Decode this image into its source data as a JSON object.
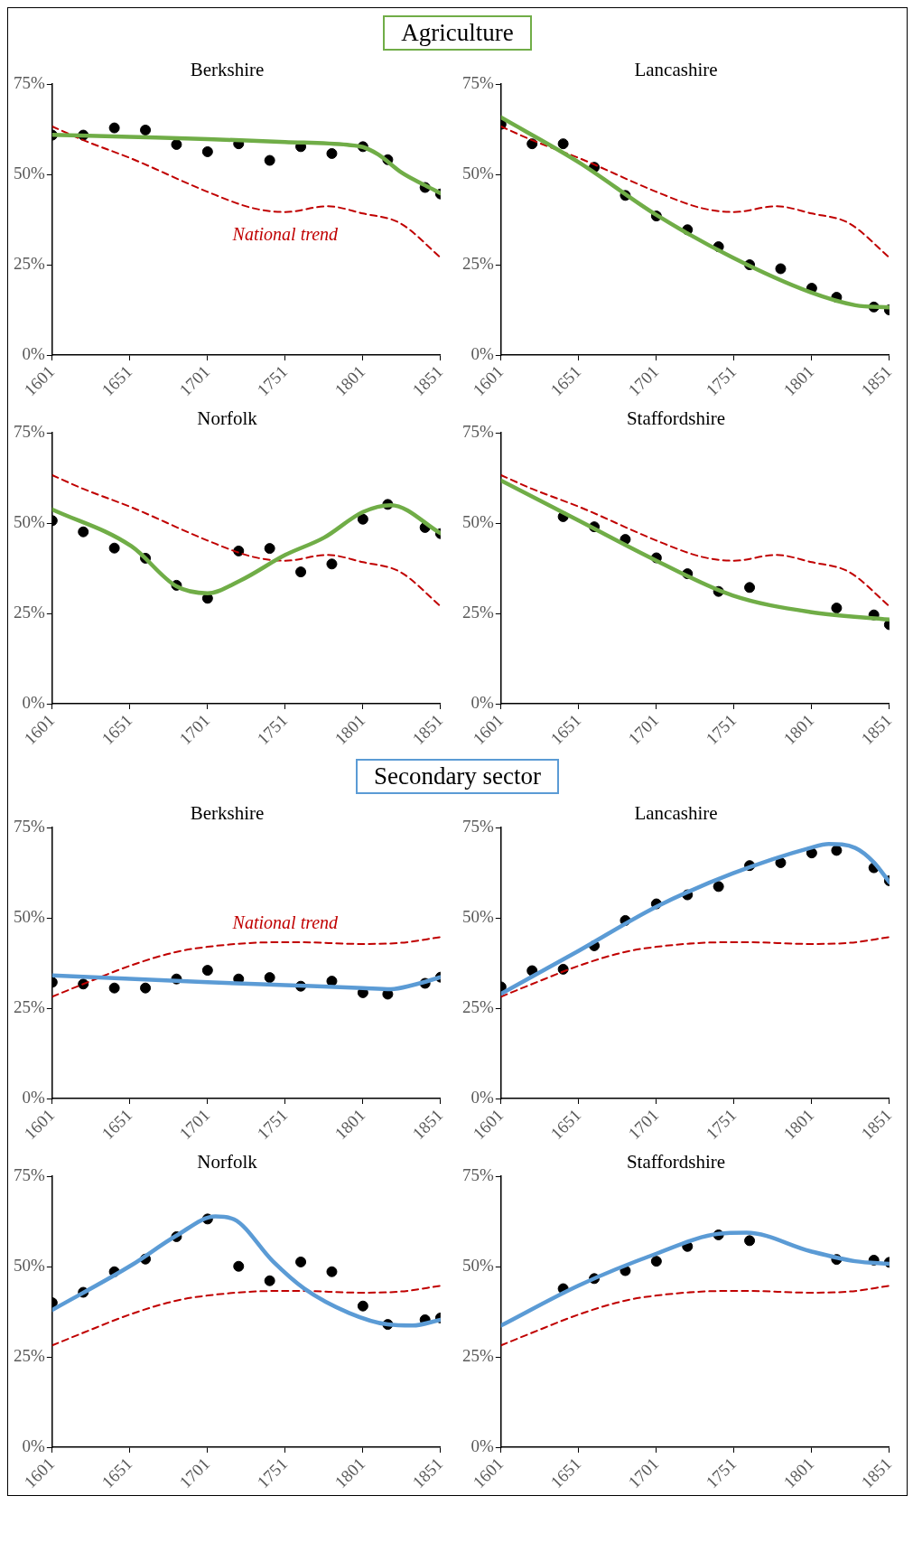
{
  "chart_data": [
    {
      "type": "other",
      "title": "Agriculture",
      "color": "#70ad47"
    },
    {
      "type": "scatter",
      "title": "Berkshire",
      "xlim": [
        1601,
        1851
      ],
      "xticks": [
        1601,
        1651,
        1701,
        1751,
        1801,
        1851
      ],
      "ylim": [
        0,
        75
      ],
      "yticks": [
        {
          "value": 0,
          "label": "0%"
        },
        {
          "value": 25,
          "label": "25%"
        },
        {
          "value": 50,
          "label": "50%"
        },
        {
          "value": 75,
          "label": "75%"
        }
      ],
      "annotations": [
        "National trend"
      ],
      "series": [
        {
          "type": "scatter",
          "marker": "circle",
          "color": "#000000",
          "x": [
            1601,
            1621,
            1641,
            1661,
            1681,
            1701,
            1721,
            1741,
            1761,
            1781,
            1801,
            1817,
            1841,
            1851
          ],
          "values": [
            60.9,
            60.9,
            62.9,
            62.3,
            58.3,
            56.3,
            58.5,
            53.9,
            57.7,
            55.8,
            57.7,
            54.1,
            46.4,
            44.6
          ]
        },
        {
          "type": "line",
          "color": "#70ad47",
          "x": [
            1601,
            1651,
            1701,
            1751,
            1791,
            1801,
            1811,
            1826,
            1841,
            1851
          ],
          "values": [
            61,
            60.4,
            59.8,
            59,
            58.2,
            57.6,
            55.5,
            50.5,
            47,
            44.8
          ]
        },
        {
          "type": "line",
          "color": "#c00000",
          "line_style": "dashed",
          "x": [
            1601,
            1621,
            1652,
            1701,
            1730,
            1751,
            1778,
            1801,
            1825,
            1851
          ],
          "values": [
            63.3,
            59.5,
            54.4,
            45.2,
            40.7,
            39.6,
            41.2,
            39.2,
            36.5,
            27
          ]
        }
      ]
    },
    {
      "type": "scatter",
      "title": "Lancashire",
      "xlim": [
        1601,
        1851
      ],
      "xticks": [
        1601,
        1651,
        1701,
        1751,
        1801,
        1851
      ],
      "ylim": [
        0,
        75
      ],
      "yticks": [
        {
          "value": 0,
          "label": "0%"
        },
        {
          "value": 25,
          "label": "25%"
        },
        {
          "value": 50,
          "label": "50%"
        },
        {
          "value": 75,
          "label": "75%"
        }
      ],
      "series": [
        {
          "type": "scatter",
          "marker": "circle",
          "color": "#000000",
          "x": [
            1601,
            1621,
            1641,
            1661,
            1681,
            1701,
            1721,
            1741,
            1761,
            1781,
            1801,
            1817,
            1841,
            1851
          ],
          "values": [
            63.9,
            58.5,
            58.5,
            52,
            44.2,
            38.5,
            34.7,
            30,
            25,
            23.9,
            18.5,
            16,
            13.3,
            12.5
          ]
        },
        {
          "type": "line",
          "color": "#70ad47",
          "x": [
            1601,
            1651,
            1701,
            1750,
            1800,
            1829,
            1851
          ],
          "values": [
            65.8,
            53.4,
            38.8,
            27,
            17.4,
            13.8,
            13.2
          ]
        },
        {
          "type": "line",
          "color": "#c00000",
          "line_style": "dashed",
          "x": [
            1601,
            1621,
            1652,
            1701,
            1730,
            1751,
            1778,
            1801,
            1825,
            1851
          ],
          "values": [
            63.3,
            59.5,
            54.4,
            45.2,
            40.7,
            39.6,
            41.2,
            39.2,
            36.5,
            27
          ]
        }
      ]
    },
    {
      "type": "scatter",
      "title": "Norfolk",
      "xlim": [
        1601,
        1851
      ],
      "xticks": [
        1601,
        1651,
        1701,
        1751,
        1801,
        1851
      ],
      "ylim": [
        0,
        75
      ],
      "yticks": [
        {
          "value": 0,
          "label": "0%"
        },
        {
          "value": 25,
          "label": "25%"
        },
        {
          "value": 50,
          "label": "50%"
        },
        {
          "value": 75,
          "label": "75%"
        }
      ],
      "series": [
        {
          "type": "scatter",
          "marker": "circle",
          "color": "#000000",
          "x": [
            1601,
            1621,
            1641,
            1661,
            1681,
            1701,
            1721,
            1741,
            1761,
            1781,
            1801,
            1817,
            1841,
            1851
          ],
          "values": [
            50.7,
            47.6,
            43.1,
            40.3,
            32.8,
            29.2,
            42.3,
            43,
            36.5,
            38.7,
            51.1,
            55.2,
            48.8,
            47.1
          ]
        },
        {
          "type": "line",
          "color": "#70ad47",
          "x": [
            1601,
            1652,
            1681,
            1701,
            1722,
            1751,
            1776,
            1801,
            1819,
            1851
          ],
          "values": [
            53.8,
            43.6,
            32.5,
            30.6,
            34.1,
            41.2,
            46,
            53.1,
            55,
            47.2
          ]
        },
        {
          "type": "line",
          "color": "#c00000",
          "line_style": "dashed",
          "x": [
            1601,
            1621,
            1652,
            1701,
            1730,
            1751,
            1778,
            1801,
            1825,
            1851
          ],
          "values": [
            63.3,
            59.5,
            54.4,
            45.2,
            40.7,
            39.6,
            41.2,
            39.2,
            36.5,
            27
          ]
        }
      ]
    },
    {
      "type": "scatter",
      "title": "Staffordshire",
      "xlim": [
        1601,
        1851
      ],
      "xticks": [
        1601,
        1651,
        1701,
        1751,
        1801,
        1851
      ],
      "ylim": [
        0,
        75
      ],
      "yticks": [
        {
          "value": 0,
          "label": "0%"
        },
        {
          "value": 25,
          "label": "25%"
        },
        {
          "value": 50,
          "label": "50%"
        },
        {
          "value": 75,
          "label": "75%"
        }
      ],
      "series": [
        {
          "type": "scatter",
          "marker": "circle",
          "color": "#000000",
          "x": [
            1641,
            1661,
            1681,
            1701,
            1721,
            1741,
            1761,
            1817,
            1841,
            1851
          ],
          "values": [
            51.8,
            49,
            45.5,
            40.4,
            36,
            31.1,
            32.2,
            26.5,
            24.6,
            21.9
          ]
        },
        {
          "type": "line",
          "color": "#70ad47",
          "x": [
            1601,
            1651,
            1701,
            1750,
            1800,
            1851
          ],
          "values": [
            61.8,
            50.7,
            39.6,
            30,
            25.4,
            23.3
          ]
        },
        {
          "type": "line",
          "color": "#c00000",
          "line_style": "dashed",
          "x": [
            1601,
            1621,
            1652,
            1701,
            1730,
            1751,
            1778,
            1801,
            1825,
            1851
          ],
          "values": [
            63.3,
            59.5,
            54.4,
            45.2,
            40.7,
            39.6,
            41.2,
            39.2,
            36.5,
            27
          ]
        }
      ]
    },
    {
      "type": "other",
      "title": "Secondary sector",
      "color": "#5b9bd5"
    },
    {
      "type": "scatter",
      "title": "Berkshire",
      "xlim": [
        1601,
        1851
      ],
      "xticks": [
        1601,
        1651,
        1701,
        1751,
        1801,
        1851
      ],
      "ylim": [
        0,
        75
      ],
      "yticks": [
        {
          "value": 0,
          "label": "0%"
        },
        {
          "value": 25,
          "label": "25%"
        },
        {
          "value": 50,
          "label": "50%"
        },
        {
          "value": 75,
          "label": "75%"
        }
      ],
      "annotations": [
        "National trend"
      ],
      "series": [
        {
          "type": "scatter",
          "marker": "circle",
          "color": "#000000",
          "x": [
            1601,
            1621,
            1641,
            1661,
            1681,
            1701,
            1721,
            1741,
            1761,
            1781,
            1801,
            1817,
            1841,
            1851
          ],
          "values": [
            32.2,
            31.7,
            30.6,
            30.6,
            33.1,
            35.5,
            33.1,
            33.5,
            31.1,
            32.5,
            29.3,
            28.9,
            31.9,
            33.6
          ]
        },
        {
          "type": "line",
          "color": "#5b9bd5",
          "x": [
            1601,
            1701,
            1751,
            1801,
            1819,
            1833,
            1851
          ],
          "values": [
            34.1,
            32.2,
            31.4,
            30.6,
            30.3,
            31.4,
            33.6
          ]
        },
        {
          "type": "line",
          "color": "#c00000",
          "line_style": "dashed",
          "x": [
            1601,
            1621,
            1652,
            1681,
            1701,
            1730,
            1758,
            1800,
            1825,
            1851
          ],
          "values": [
            28.2,
            31.7,
            36.9,
            40.6,
            42,
            43.1,
            43.3,
            42.8,
            43.1,
            44.7
          ]
        }
      ]
    },
    {
      "type": "scatter",
      "title": "Lancashire",
      "xlim": [
        1601,
        1851
      ],
      "xticks": [
        1601,
        1651,
        1701,
        1751,
        1801,
        1851
      ],
      "ylim": [
        0,
        75
      ],
      "yticks": [
        {
          "value": 0,
          "label": "0%"
        },
        {
          "value": 25,
          "label": "25%"
        },
        {
          "value": 50,
          "label": "50%"
        },
        {
          "value": 75,
          "label": "75%"
        }
      ],
      "series": [
        {
          "type": "scatter",
          "marker": "circle",
          "color": "#000000",
          "x": [
            1601,
            1621,
            1641,
            1661,
            1681,
            1701,
            1721,
            1741,
            1761,
            1781,
            1801,
            1817,
            1841,
            1851
          ],
          "values": [
            30.9,
            35.4,
            35.8,
            42.3,
            49.3,
            53.9,
            56.4,
            58.7,
            64.5,
            65.3,
            68,
            68.7,
            63.9,
            60.3
          ]
        },
        {
          "type": "line",
          "color": "#5b9bd5",
          "x": [
            1601,
            1651,
            1701,
            1750,
            1800,
            1812,
            1829,
            1841,
            1851
          ],
          "values": [
            29,
            40.9,
            53.1,
            62.3,
            69.4,
            70.5,
            69.4,
            65.4,
            59.9
          ]
        },
        {
          "type": "line",
          "color": "#c00000",
          "line_style": "dashed",
          "x": [
            1601,
            1621,
            1652,
            1681,
            1701,
            1730,
            1758,
            1800,
            1825,
            1851
          ],
          "values": [
            28.2,
            31.7,
            36.9,
            40.6,
            42,
            43.1,
            43.3,
            42.8,
            43.1,
            44.7
          ]
        }
      ]
    },
    {
      "type": "scatter",
      "title": "Norfolk",
      "xlim": [
        1601,
        1851
      ],
      "xticks": [
        1601,
        1651,
        1701,
        1751,
        1801,
        1851
      ],
      "ylim": [
        0,
        75
      ],
      "yticks": [
        {
          "value": 0,
          "label": "0%"
        },
        {
          "value": 25,
          "label": "25%"
        },
        {
          "value": 50,
          "label": "50%"
        },
        {
          "value": 75,
          "label": "75%"
        }
      ],
      "series": [
        {
          "type": "scatter",
          "marker": "circle",
          "color": "#000000",
          "x": [
            1601,
            1621,
            1641,
            1661,
            1681,
            1701,
            1721,
            1741,
            1761,
            1781,
            1801,
            1817,
            1841,
            1851
          ],
          "values": [
            40,
            42.9,
            48.6,
            52.1,
            58.3,
            63.2,
            50.1,
            46.1,
            51.3,
            48.6,
            39.1,
            34,
            35.3,
            35.8
          ]
        },
        {
          "type": "line",
          "color": "#5b9bd5",
          "x": [
            1601,
            1652,
            1681,
            1706,
            1718,
            1743,
            1763,
            1792,
            1817,
            1833,
            1851
          ],
          "values": [
            38,
            50.4,
            58.6,
            63.9,
            63.1,
            51.5,
            44,
            37.2,
            34,
            33.7,
            35.3
          ]
        },
        {
          "type": "line",
          "color": "#c00000",
          "line_style": "dashed",
          "x": [
            1601,
            1621,
            1652,
            1681,
            1701,
            1730,
            1758,
            1800,
            1825,
            1851
          ],
          "values": [
            28.2,
            31.7,
            36.9,
            40.6,
            42,
            43.1,
            43.3,
            42.8,
            43.1,
            44.7
          ]
        }
      ]
    },
    {
      "type": "scatter",
      "title": "Staffordshire",
      "xlim": [
        1601,
        1851
      ],
      "xticks": [
        1601,
        1651,
        1701,
        1751,
        1801,
        1851
      ],
      "ylim": [
        0,
        75
      ],
      "yticks": [
        {
          "value": 0,
          "label": "0%"
        },
        {
          "value": 25,
          "label": "25%"
        },
        {
          "value": 50,
          "label": "50%"
        },
        {
          "value": 75,
          "label": "75%"
        }
      ],
      "series": [
        {
          "type": "scatter",
          "marker": "circle",
          "color": "#000000",
          "x": [
            1641,
            1661,
            1681,
            1701,
            1721,
            1741,
            1761,
            1817,
            1841,
            1851
          ],
          "values": [
            43.9,
            46.7,
            48.9,
            51.5,
            55.6,
            58.8,
            57.2,
            52,
            51.8,
            51.2
          ]
        },
        {
          "type": "line",
          "color": "#5b9bd5",
          "x": [
            1601,
            1651,
            1701,
            1741,
            1759,
            1800,
            1829,
            1851
          ],
          "values": [
            33.7,
            44.8,
            53.6,
            59.1,
            59.4,
            54.3,
            51.5,
            50.8
          ]
        },
        {
          "type": "line",
          "color": "#c00000",
          "line_style": "dashed",
          "x": [
            1601,
            1621,
            1652,
            1681,
            1701,
            1730,
            1758,
            1800,
            1825,
            1851
          ],
          "values": [
            28.2,
            31.7,
            36.9,
            40.6,
            42,
            43.1,
            43.3,
            42.8,
            43.1,
            44.7
          ]
        }
      ]
    }
  ]
}
